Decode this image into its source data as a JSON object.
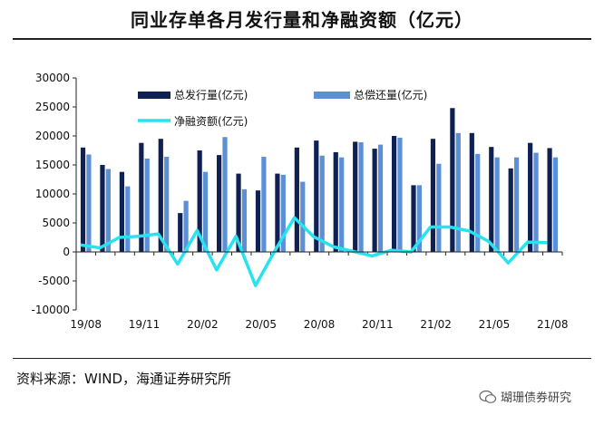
{
  "title": "同业存单各月发行量和净融资额（亿元）",
  "source": "资料来源：WIND，海通证券研究所",
  "watermark": "瑚珊债券研究",
  "chart_data": {
    "type": "bar",
    "title": "同业存单各月发行量和净融资额（亿元）",
    "xlabel": "",
    "ylabel": "",
    "ylim": [
      -10000,
      30000
    ],
    "yticks": [
      -10000,
      -5000,
      0,
      5000,
      10000,
      15000,
      20000,
      25000,
      30000
    ],
    "ytick_labels": [
      "-10000",
      "-5000",
      "0",
      "5000",
      "10000",
      "15000",
      "20000",
      "25000",
      "30000"
    ],
    "xtick_labels": [
      {
        "index": 0,
        "label": "19/08"
      },
      {
        "index": 3,
        "label": "19/11"
      },
      {
        "index": 6,
        "label": "20/02"
      },
      {
        "index": 9,
        "label": "20/05"
      },
      {
        "index": 12,
        "label": "20/08"
      },
      {
        "index": 15,
        "label": "20/11"
      },
      {
        "index": 18,
        "label": "21/02"
      },
      {
        "index": 21,
        "label": "21/05"
      },
      {
        "index": 24,
        "label": "21/08"
      }
    ],
    "categories": [
      "19/08",
      "19/09",
      "19/10",
      "19/11",
      "19/12",
      "20/01",
      "20/02",
      "20/03",
      "20/04",
      "20/05",
      "20/06",
      "20/07",
      "20/08",
      "20/09",
      "20/10",
      "20/11",
      "20/12",
      "21/01",
      "21/02",
      "21/03",
      "21/04",
      "21/05",
      "21/06",
      "21/07",
      "21/08"
    ],
    "legend_position": "top",
    "series": [
      {
        "name": "总发行量(亿元)",
        "type": "bar",
        "color": "#0e2152",
        "values": [
          18000,
          15000,
          13800,
          18800,
          19500,
          6700,
          17500,
          16700,
          13500,
          10600,
          13500,
          18000,
          19200,
          17200,
          19000,
          17800,
          20000,
          11500,
          19500,
          24800,
          20500,
          18100,
          14400,
          18800,
          17900
        ]
      },
      {
        "name": "总偿还量(亿元)",
        "type": "bar",
        "color": "#5b8fd6",
        "values": [
          16800,
          14300,
          11300,
          16100,
          16400,
          8800,
          13800,
          19800,
          10800,
          16400,
          13300,
          12100,
          16600,
          16300,
          18900,
          18500,
          19700,
          11500,
          15200,
          20500,
          16900,
          16300,
          16300,
          17100,
          16300
        ]
      },
      {
        "name": "净融资额(亿元)",
        "type": "line",
        "color": "#27e3f0",
        "values": [
          1200,
          700,
          2500,
          2700,
          3100,
          -2100,
          3700,
          -3100,
          2700,
          -5800,
          200,
          5900,
          2600,
          900,
          100,
          -700,
          300,
          0,
          4300,
          4300,
          3600,
          1800,
          -1900,
          1700,
          1600
        ]
      }
    ]
  }
}
